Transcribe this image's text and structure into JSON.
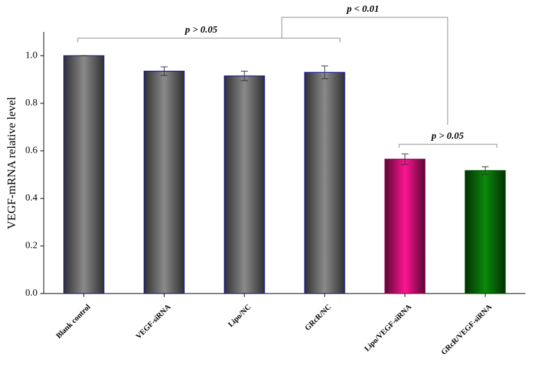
{
  "chart_data": {
    "type": "bar",
    "ylabel": "VEGF-mRNA relative level",
    "categories": [
      "Blank control",
      "VEGF-siRNA",
      "Lipo/NC",
      "GRcR/NC",
      "Lipo/VEGF-siRNA",
      "GRcR/VEGF-siRNA"
    ],
    "values": [
      1.0,
      0.935,
      0.915,
      0.93,
      0.565,
      0.517
    ],
    "errors": [
      0,
      0.018,
      0.02,
      0.027,
      0.022,
      0.016
    ],
    "colors": [
      "#8a8a8a",
      "#8a8a8a",
      "#8a8a8a",
      "#8a8a8a",
      "#ff1493",
      "#0b8a0b"
    ],
    "ylim": [
      0,
      1.1
    ],
    "yticks": [
      {
        "value": 0,
        "label": "0.0"
      },
      0.2,
      0.4,
      0.6,
      0.8,
      {
        "value": 1,
        "label": "1.0"
      }
    ],
    "annotations": [
      "p > 0.05",
      "p < 0.01",
      "p > 0.05"
    ]
  }
}
